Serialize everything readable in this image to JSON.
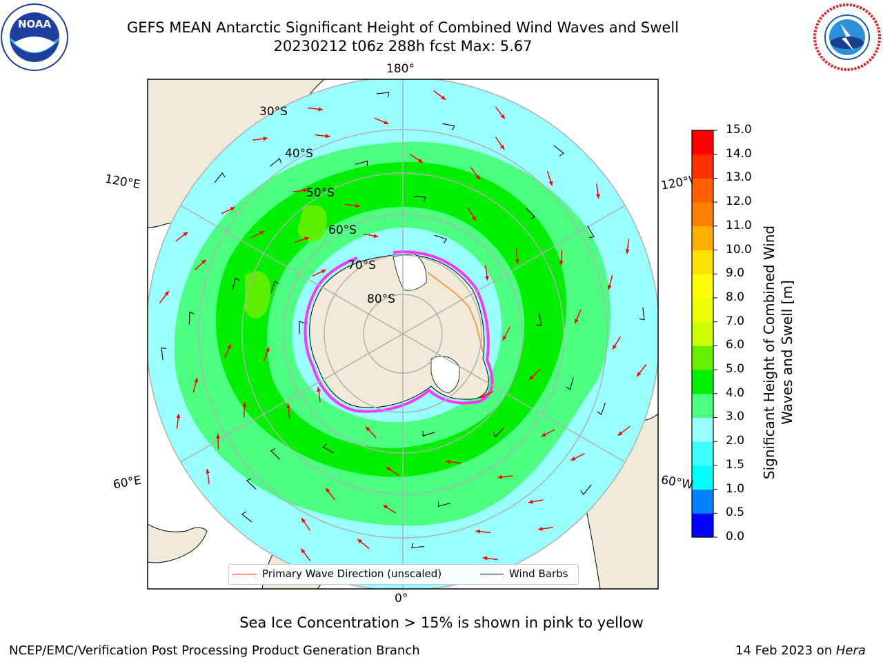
{
  "header": {
    "title_line1": "GEFS MEAN Antarctic Significant Height of Combined Wind Waves and Swell",
    "title_line2": "20230212 t06z 288h fcst   Max: 5.67"
  },
  "logos": {
    "noaa_text": "NOAA",
    "noaa_ring_text": "NATIONAL OCEANIC AND ATMOSPHERIC ADMINISTRATION · U.S. DEPARTMENT OF COMMERCE",
    "nws_ring_text": "NATIONAL WEATHER SERVICE"
  },
  "map": {
    "projection": "south polar stereographic",
    "longitude_labels": {
      "top": "180°",
      "bottom": "0°",
      "left_upper": "120°E",
      "left_lower": "60°E",
      "right_upper": "120°W",
      "right_lower": "60°W"
    },
    "latitude_labels": [
      "30°S",
      "40°S",
      "50°S",
      "60°S",
      "70°S",
      "80°S"
    ],
    "legend": [
      {
        "label": "Primary Wave Direction (unscaled)",
        "color": "#ff0000"
      },
      {
        "label": "Wind Barbs",
        "color": "#000000"
      }
    ],
    "colors": {
      "land": "#efebd8",
      "ice": "#ff33ff",
      "arrow": "#ff0000",
      "barb": "#000000",
      "grid": "#b0b0b0"
    },
    "max_value": 5.67
  },
  "colorbar": {
    "title": "Significant Height of Combined Wind Waves and Swell [m]",
    "ticks": [
      "0.0",
      "0.5",
      "1.0",
      "1.5",
      "2.0",
      "3.0",
      "4.0",
      "5.0",
      "6.0",
      "7.0",
      "8.0",
      "9.0",
      "10.0",
      "11.0",
      "12.0",
      "13.0",
      "14.0",
      "15.0"
    ],
    "colors": [
      "#0000ff",
      "#0080ff",
      "#00ffff",
      "#40ffff",
      "#99ffff",
      "#4dff80",
      "#00ee00",
      "#66ee00",
      "#ccff00",
      "#eeff00",
      "#ffff00",
      "#ffe000",
      "#ffb000",
      "#ff8000",
      "#ff6000",
      "#ff3000",
      "#ff0000"
    ]
  },
  "footer": {
    "note": "Sea Ice Concentration > 15% is shown in pink to yellow",
    "left": "NCEP/EMC/Verification Post Processing Product Generation Branch",
    "right_date": "14 Feb 2023 on ",
    "right_host": "Hera"
  }
}
